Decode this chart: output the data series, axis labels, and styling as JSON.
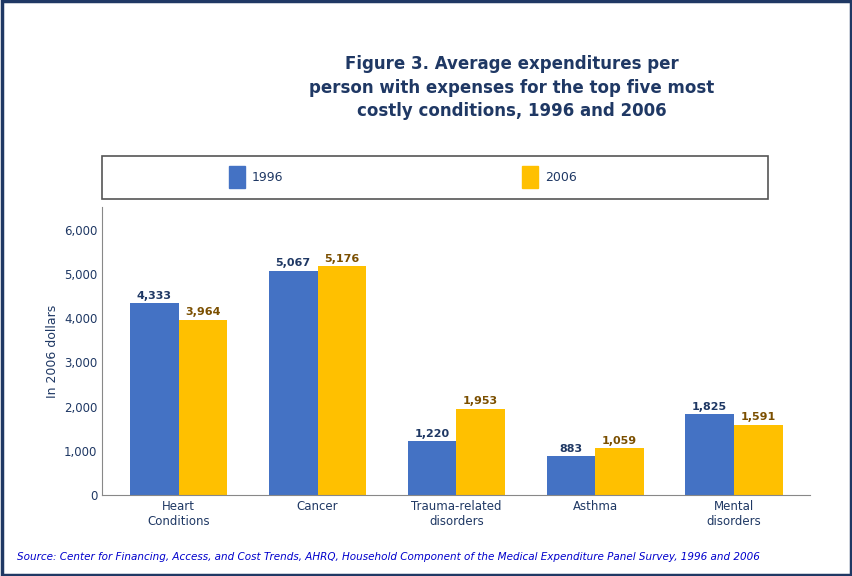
{
  "categories": [
    "Heart\nConditions",
    "Cancer",
    "Trauma-related\ndisorders",
    "Asthma",
    "Mental\ndisorders"
  ],
  "values_1996": [
    4333,
    5067,
    1220,
    883,
    1825
  ],
  "values_2006": [
    3964,
    5176,
    1953,
    1059,
    1591
  ],
  "labels_1996": [
    "4,333",
    "5,067",
    "1,220",
    "883",
    "1,825"
  ],
  "labels_2006": [
    "3,964",
    "5,176",
    "1,953",
    "1,059",
    "1,591"
  ],
  "color_1996": "#4472C4",
  "color_2006": "#FFC000",
  "title": "Figure 3. Average expenditures per\nperson with expenses for the top five most\ncostly conditions, 1996 and 2006",
  "ylabel": "In 2006 dollars",
  "ylim": [
    0,
    6500
  ],
  "yticks": [
    0,
    1000,
    2000,
    3000,
    4000,
    5000,
    6000
  ],
  "legend_1996": "1996",
  "legend_2006": "2006",
  "source_text": "Source: Center for Financing, Access, and Cost Trends, AHRQ, Household Component of the Medical Expenditure Panel Survey, 1996 and 2006",
  "bg_color": "#FFFFFF",
  "title_color": "#1F3864",
  "bar_label_color_1996": "#1F3864",
  "bar_label_color_2006": "#7B4F00",
  "axis_label_color": "#1F3864",
  "tick_label_color": "#1F3864",
  "source_color": "#0000CC",
  "bar_width": 0.35,
  "title_fontsize": 12,
  "label_fontsize": 8,
  "tick_fontsize": 8.5,
  "ylabel_fontsize": 9,
  "source_fontsize": 7.5,
  "legend_fontsize": 9,
  "header_line_color": "#0000AA",
  "outer_border_color": "#1F3864",
  "legend_text_color": "#1F3864"
}
